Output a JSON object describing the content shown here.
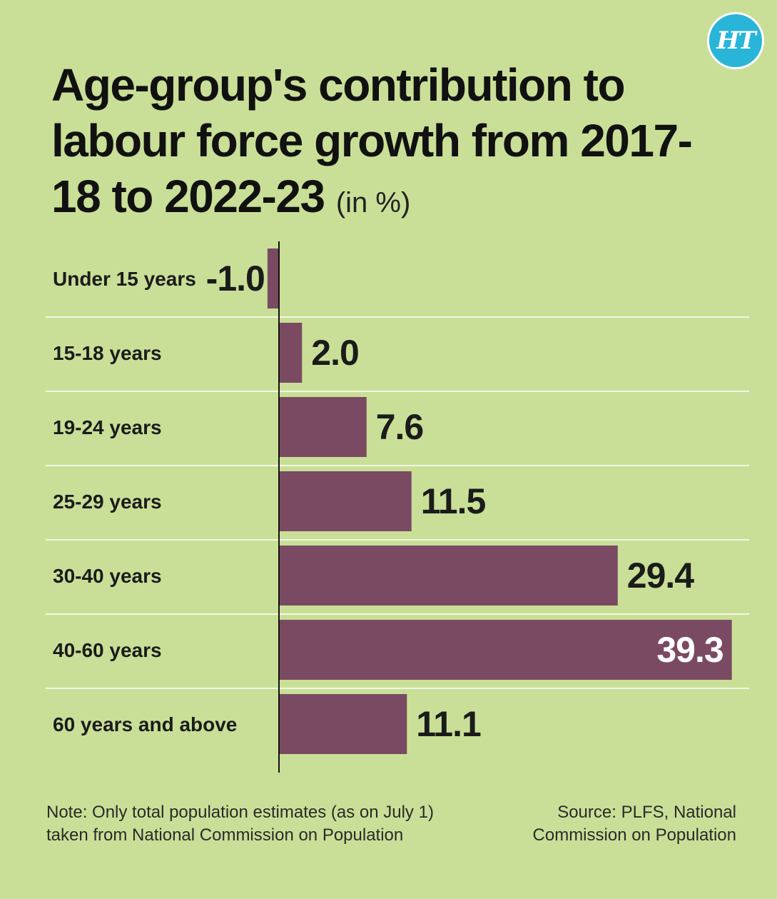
{
  "logo": {
    "text": "HT"
  },
  "title": {
    "main": "Age-group's contribution to labour force growth from 2017-18 to 2022-23",
    "unit": "(in %)"
  },
  "chart_data": {
    "type": "bar",
    "orientation": "horizontal",
    "categories": [
      "Under 15 years",
      "15-18 years",
      "19-24 years",
      "25-29 years",
      "30-40 years",
      "40-60 years",
      "60 years and above"
    ],
    "values": [
      -1.0,
      2.0,
      7.6,
      11.5,
      29.4,
      39.3,
      11.1
    ],
    "data_labels": [
      "-1.0",
      "2.0",
      "7.6",
      "11.5",
      "29.4",
      "39.3",
      "11.1"
    ],
    "title": "Age-group's contribution to labour force growth from 2017-18 to 2022-23 (in %)",
    "xlabel": "",
    "ylabel": "",
    "bar_color": "#7a4a63",
    "gridlines": "row separators (white)",
    "legend": "none"
  },
  "footer": {
    "note": "Note: Only total population estimates (as on July 1) taken from National Commission on Population",
    "source": "Source: PLFS, National Commission on Population"
  }
}
